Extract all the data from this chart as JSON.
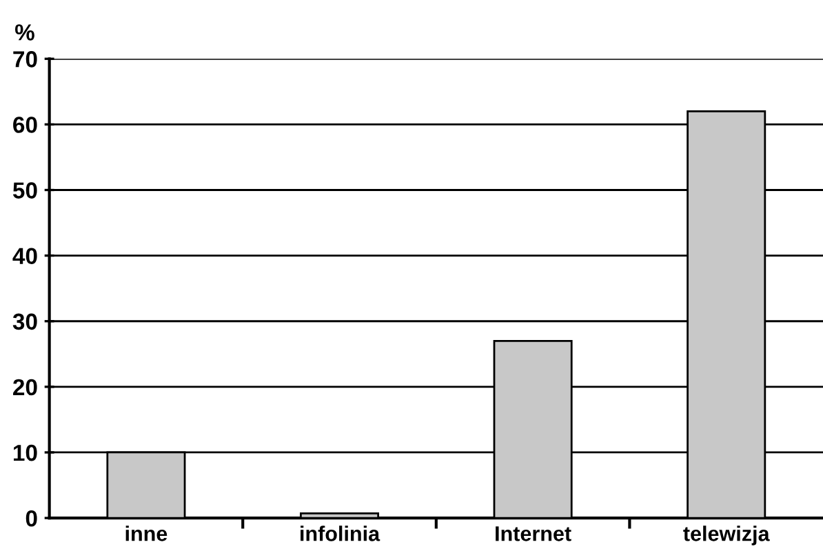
{
  "chart_data": {
    "type": "bar",
    "ylabel": "%",
    "categories": [
      "inne",
      "infolinia",
      "Internet",
      "telewizja"
    ],
    "values": [
      10,
      0.7,
      27,
      62
    ],
    "color": "#c8c8c8",
    "ylim": [
      0,
      70
    ],
    "yticks": [
      0,
      10,
      20,
      30,
      40,
      50,
      60,
      70
    ],
    "grid": "y"
  }
}
